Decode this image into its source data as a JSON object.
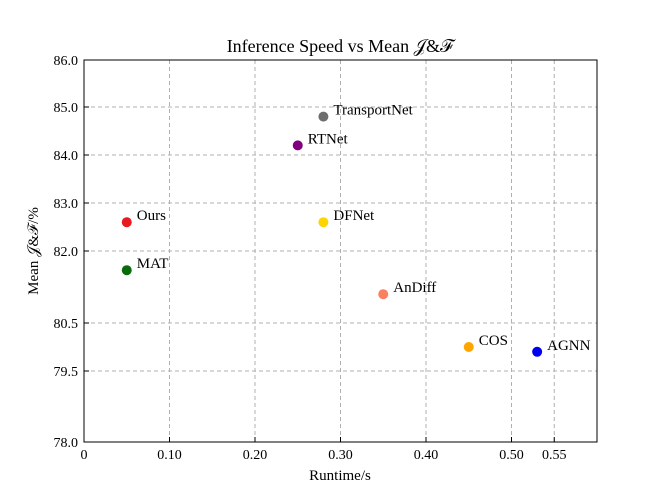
{
  "chart_data": {
    "type": "scatter",
    "title": "Inference Speed vs Mean 𝒥&ℱ",
    "xlabel": "Runtime/s",
    "ylabel": "Mean 𝒥&ℱ/%",
    "xlim": [
      0,
      0.6
    ],
    "ylim": [
      78.0,
      86.0
    ],
    "xticks": [
      0,
      0.1,
      0.2,
      0.3,
      0.4,
      0.5,
      0.55
    ],
    "xtick_labels": [
      "0",
      "0.10",
      "0.20",
      "0.30",
      "0.40",
      "0.50",
      "0.55"
    ],
    "yticks": [
      78.0,
      79.5,
      80.5,
      82.0,
      83.0,
      84.0,
      85.0,
      86.0
    ],
    "ytick_labels": [
      "78.0",
      "79.5",
      "80.5",
      "82.0",
      "83.0",
      "84.0",
      "85.0",
      "86.0"
    ],
    "grid": true,
    "points": [
      {
        "label": "TransportNet",
        "x": 0.28,
        "y": 84.8,
        "color": "#6e6e6e"
      },
      {
        "label": "RTNet",
        "x": 0.25,
        "y": 84.2,
        "color": "#800080"
      },
      {
        "label": "Ours",
        "x": 0.05,
        "y": 82.6,
        "color": "#e8191f"
      },
      {
        "label": "DFNet",
        "x": 0.28,
        "y": 82.6,
        "color": "#ffd400"
      },
      {
        "label": "MAT",
        "x": 0.05,
        "y": 81.6,
        "color": "#0b6b0b"
      },
      {
        "label": "AnDiff",
        "x": 0.35,
        "y": 81.1,
        "color": "#fa8060"
      },
      {
        "label": "COS",
        "x": 0.45,
        "y": 80.0,
        "color": "#ffa500"
      },
      {
        "label": "AGNN",
        "x": 0.53,
        "y": 79.9,
        "color": "#0000ee"
      }
    ]
  }
}
